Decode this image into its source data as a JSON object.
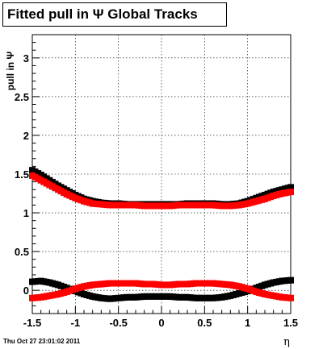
{
  "chart_data": {
    "type": "scatter",
    "title": "Fitted pull in  Ψ   Global Tracks",
    "xlabel": "η",
    "ylabel": "pull in Ψ",
    "xlim": [
      -1.5,
      1.5
    ],
    "ylim": [
      -0.3,
      3.3
    ],
    "grid": true,
    "xticks": [
      "-1.5",
      "-1",
      "-0.5",
      "0",
      "0.5",
      "1",
      "1.5"
    ],
    "xtick_values": [
      -1.5,
      -1,
      -0.5,
      0,
      0.5,
      1,
      1.5
    ],
    "yticks": [
      "0",
      "0.5",
      "1",
      "1.5",
      "2",
      "2.5",
      "3"
    ],
    "ytick_values": [
      0,
      0.5,
      1,
      1.5,
      2,
      2.5,
      3
    ],
    "series": [
      {
        "color": "#000000",
        "x": [
          -1.5,
          -1.4,
          -1.3,
          -1.2,
          -1.1,
          -1.0,
          -0.9,
          -0.8,
          -0.7,
          -0.6,
          -0.5,
          -0.4,
          -0.3,
          -0.2,
          -0.1,
          0.0,
          0.1,
          0.2,
          0.3,
          0.4,
          0.5,
          0.6,
          0.7,
          0.8,
          0.9,
          1.0,
          1.1,
          1.2,
          1.3,
          1.4,
          1.5
        ],
        "values": [
          1.55,
          1.49,
          1.42,
          1.35,
          1.29,
          1.23,
          1.18,
          1.15,
          1.13,
          1.12,
          1.12,
          1.11,
          1.11,
          1.11,
          1.11,
          1.11,
          1.11,
          1.11,
          1.12,
          1.12,
          1.12,
          1.12,
          1.11,
          1.11,
          1.12,
          1.15,
          1.19,
          1.23,
          1.27,
          1.3,
          1.33
        ]
      },
      {
        "color": "#ff0000",
        "x": [
          -1.5,
          -1.4,
          -1.3,
          -1.2,
          -1.1,
          -1.0,
          -0.9,
          -0.8,
          -0.7,
          -0.6,
          -0.5,
          -0.4,
          -0.3,
          -0.2,
          -0.1,
          0.0,
          0.1,
          0.2,
          0.3,
          0.4,
          0.5,
          0.6,
          0.7,
          0.8,
          0.9,
          1.0,
          1.1,
          1.2,
          1.3,
          1.4,
          1.5
        ],
        "values": [
          1.48,
          1.42,
          1.36,
          1.3,
          1.24,
          1.19,
          1.15,
          1.12,
          1.11,
          1.1,
          1.1,
          1.1,
          1.1,
          1.09,
          1.09,
          1.09,
          1.09,
          1.1,
          1.1,
          1.1,
          1.1,
          1.1,
          1.09,
          1.09,
          1.1,
          1.12,
          1.15,
          1.18,
          1.22,
          1.25,
          1.27
        ]
      },
      {
        "color": "#000000",
        "x": [
          -1.5,
          -1.4,
          -1.3,
          -1.2,
          -1.1,
          -1.0,
          -0.9,
          -0.8,
          -0.7,
          -0.6,
          -0.5,
          -0.4,
          -0.3,
          -0.2,
          -0.1,
          0.0,
          0.1,
          0.2,
          0.3,
          0.4,
          0.5,
          0.6,
          0.7,
          0.8,
          0.9,
          1.0,
          1.1,
          1.2,
          1.3,
          1.4,
          1.5
        ],
        "values": [
          0.11,
          0.12,
          0.1,
          0.07,
          0.03,
          -0.01,
          -0.05,
          -0.08,
          -0.1,
          -0.11,
          -0.1,
          -0.09,
          -0.09,
          -0.08,
          -0.08,
          -0.08,
          -0.08,
          -0.09,
          -0.09,
          -0.1,
          -0.1,
          -0.1,
          -0.09,
          -0.07,
          -0.04,
          -0.01,
          0.03,
          0.07,
          0.1,
          0.12,
          0.13
        ]
      },
      {
        "color": "#ff0000",
        "x": [
          -1.5,
          -1.4,
          -1.3,
          -1.2,
          -1.1,
          -1.0,
          -0.9,
          -0.8,
          -0.7,
          -0.6,
          -0.5,
          -0.4,
          -0.3,
          -0.2,
          -0.1,
          0.0,
          0.1,
          0.2,
          0.3,
          0.4,
          0.5,
          0.6,
          0.7,
          0.8,
          0.9,
          1.0,
          1.1,
          1.2,
          1.3,
          1.4,
          1.5
        ],
        "values": [
          -0.1,
          -0.09,
          -0.07,
          -0.05,
          -0.02,
          0.02,
          0.05,
          0.07,
          0.08,
          0.09,
          0.09,
          0.09,
          0.09,
          0.08,
          0.08,
          0.07,
          0.07,
          0.08,
          0.08,
          0.09,
          0.09,
          0.09,
          0.08,
          0.07,
          0.05,
          0.02,
          -0.02,
          -0.05,
          -0.07,
          -0.09,
          -0.1
        ]
      }
    ]
  },
  "timestamp": "Thu Oct 27 23:01:02 2011"
}
